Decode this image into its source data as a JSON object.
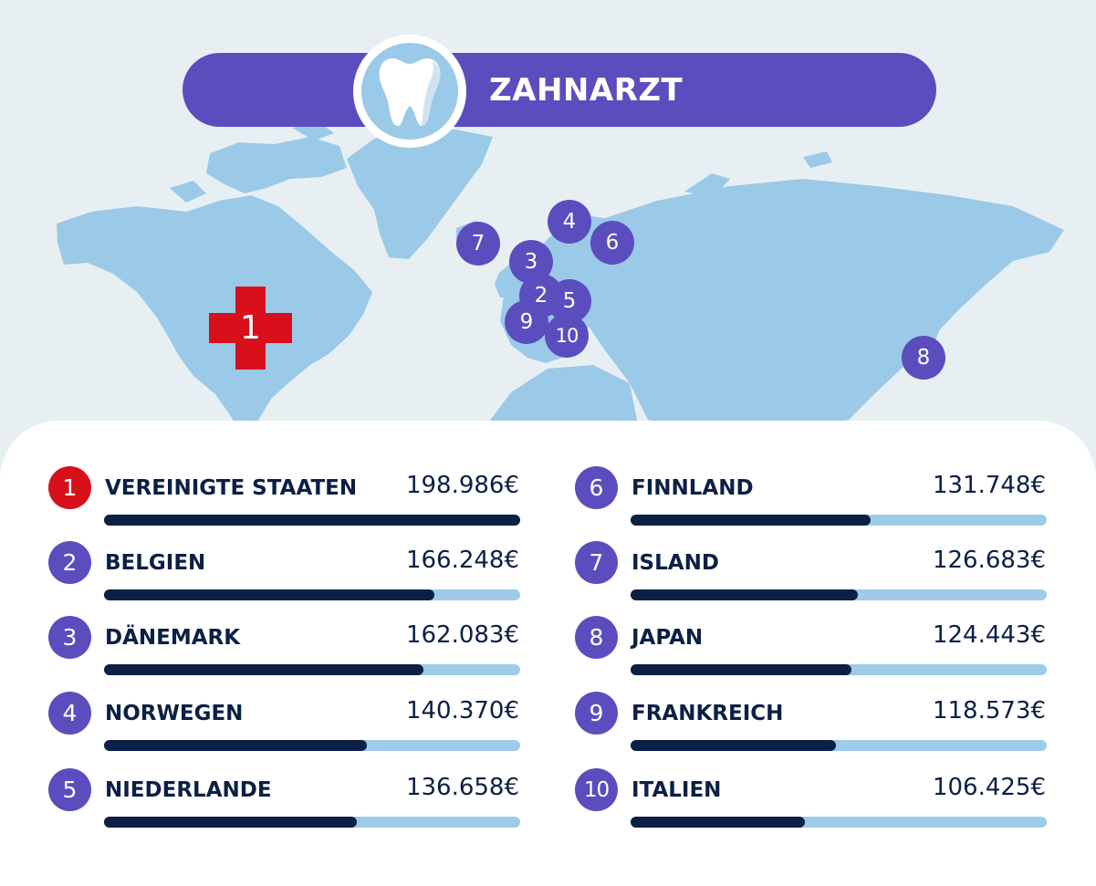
{
  "title": "ZAHNARZT",
  "icons": {
    "header": "tooth-icon",
    "first_place_marker": "medical-cross-icon"
  },
  "colors": {
    "accent": "#5b4dbe",
    "first_place": "#d7101c",
    "bar_fill": "#0c1f44",
    "bar_track": "#9ecbe7",
    "land": "#9bc9e8",
    "sea": "#e8eff3"
  },
  "chart_data": {
    "type": "bar",
    "title": "ZAHNARZT",
    "unit": "€",
    "categories": [
      "VEREINIGTE STAATEN",
      "BELGIEN",
      "DÄNEMARK",
      "NORWEGEN",
      "NIEDERLANDE",
      "FINNLAND",
      "ISLAND",
      "JAPAN",
      "FRANKREICH",
      "ITALIEN"
    ],
    "values": [
      198986,
      166248,
      162083,
      140370,
      136658,
      131748,
      126683,
      124443,
      118573,
      106425
    ],
    "value_labels": [
      "198.986€",
      "166.248€",
      "162.083€",
      "140.370€",
      "136.658€",
      "131.748€",
      "126.683€",
      "124.443€",
      "118.573€",
      "106.425€"
    ],
    "ranks": [
      "1",
      "2",
      "3",
      "4",
      "5",
      "6",
      "7",
      "8",
      "9",
      "10"
    ],
    "xlim": [
      0,
      198986
    ],
    "grid": false,
    "legend": "none"
  },
  "map_markers": [
    "1",
    "2",
    "3",
    "4",
    "5",
    "6",
    "7",
    "8",
    "9",
    "10"
  ]
}
